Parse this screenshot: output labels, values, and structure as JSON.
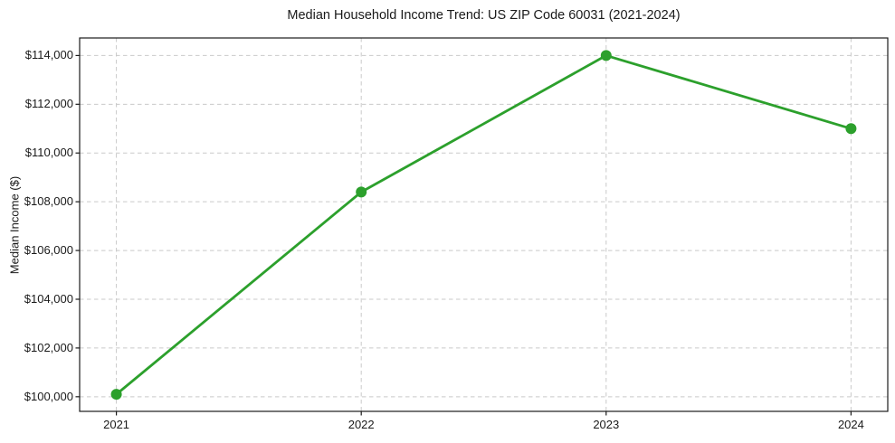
{
  "chart_data": {
    "type": "line",
    "title": "Median Household Income Trend: US ZIP Code 60031 (2021-2024)",
    "xlabel": "",
    "ylabel": "Median Income ($)",
    "x_tick_labels": [
      "2021",
      "2022",
      "2023",
      "2024"
    ],
    "x_values": [
      2021,
      2022,
      2023,
      2024
    ],
    "values": [
      100100,
      108400,
      114000,
      111000
    ],
    "y_tick_labels": [
      "$100,000",
      "$102,000",
      "$104,000",
      "$106,000",
      "$108,000",
      "$110,000",
      "$112,000",
      "$114,000"
    ],
    "y_tick_values": [
      100000,
      102000,
      104000,
      106000,
      108000,
      110000,
      112000,
      114000
    ],
    "xlim": [
      2020.85,
      2024.15
    ],
    "ylim": [
      99400,
      114720
    ],
    "grid": "dashed",
    "legend": "none",
    "colors": {
      "line": "#2ca02c",
      "marker": "#2ca02c",
      "grid": "#c9c9c9",
      "axis": "#1a1a1a",
      "text": "#1a1a1a",
      "background": "#ffffff"
    }
  }
}
